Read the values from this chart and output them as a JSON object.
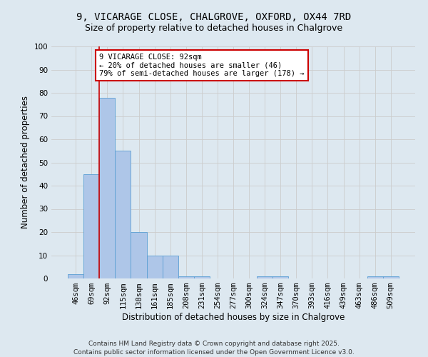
{
  "title_line1": "9, VICARAGE CLOSE, CHALGROVE, OXFORD, OX44 7RD",
  "title_line2": "Size of property relative to detached houses in Chalgrove",
  "xlabel": "Distribution of detached houses by size in Chalgrove",
  "ylabel": "Number of detached properties",
  "categories": [
    "46sqm",
    "69sqm",
    "92sqm",
    "115sqm",
    "138sqm",
    "161sqm",
    "185sqm",
    "208sqm",
    "231sqm",
    "254sqm",
    "277sqm",
    "300sqm",
    "324sqm",
    "347sqm",
    "370sqm",
    "393sqm",
    "416sqm",
    "439sqm",
    "463sqm",
    "486sqm",
    "509sqm"
  ],
  "values": [
    2,
    45,
    78,
    55,
    20,
    10,
    10,
    1,
    1,
    0,
    0,
    0,
    1,
    1,
    0,
    0,
    0,
    0,
    0,
    1,
    1
  ],
  "bar_color": "#aec6e8",
  "bar_edge_color": "#5a9fd4",
  "highlight_bar_index": 2,
  "highlight_line_color": "#cc0000",
  "annotation_text": "9 VICARAGE CLOSE: 92sqm\n← 20% of detached houses are smaller (46)\n79% of semi-detached houses are larger (178) →",
  "annotation_box_color": "#ffffff",
  "annotation_box_edge_color": "#cc0000",
  "ylim": [
    0,
    100
  ],
  "yticks": [
    0,
    10,
    20,
    30,
    40,
    50,
    60,
    70,
    80,
    90,
    100
  ],
  "grid_color": "#cccccc",
  "bg_color": "#dde8f0",
  "footer_line1": "Contains HM Land Registry data © Crown copyright and database right 2025.",
  "footer_line2": "Contains public sector information licensed under the Open Government Licence v3.0.",
  "title_fontsize": 10,
  "subtitle_fontsize": 9,
  "axis_label_fontsize": 8.5,
  "tick_fontsize": 7.5,
  "annotation_fontsize": 7.5,
  "footer_fontsize": 6.5
}
